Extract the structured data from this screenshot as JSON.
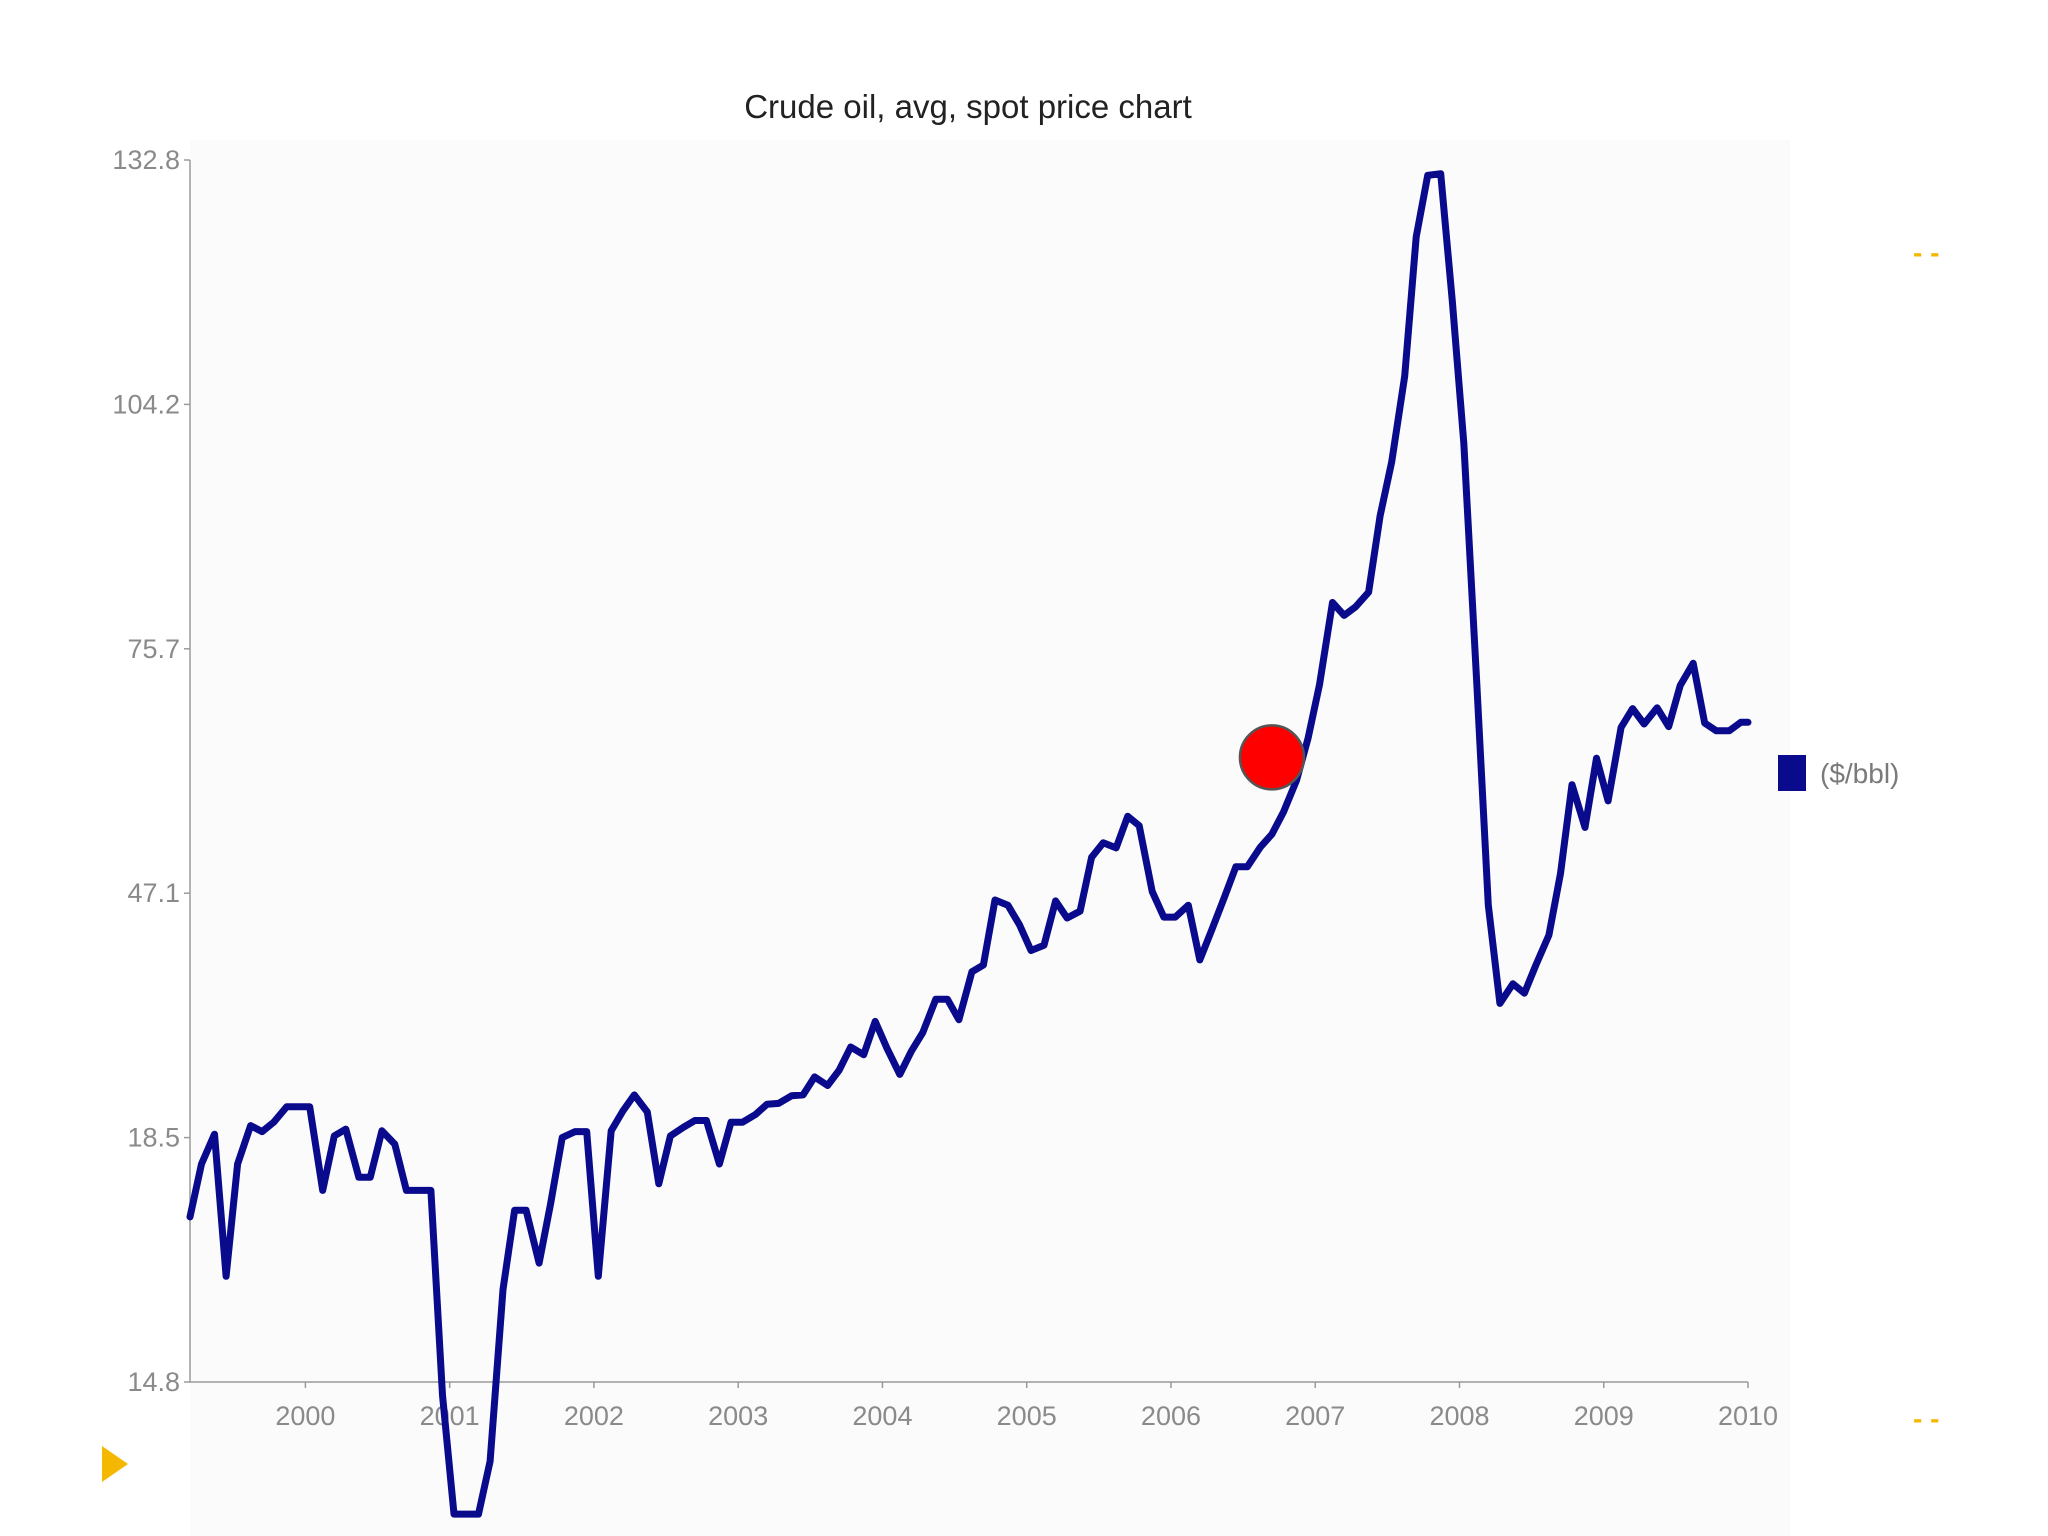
{
  "chart_data": {
    "type": "line",
    "title": "Crude oil, avg, spot  price chart",
    "xlabel": "",
    "ylabel": "",
    "x_ticks": [
      "2000",
      "2001",
      "2002",
      "2003",
      "2004",
      "2005",
      "2006",
      "2007",
      "2008",
      "2009",
      "2010"
    ],
    "y_ticks": [
      "14.8",
      "18.5",
      "47.1",
      "75.7",
      "104.2",
      "132.8"
    ],
    "xlim": [
      1999.2,
      2010.0
    ],
    "ylim": [
      14.8,
      132.8
    ],
    "grid": false,
    "legend_position": "right",
    "series": [
      {
        "name": "($/bbl)",
        "color": "#0a0a8c",
        "x": [
          1999.2,
          1999.28,
          1999.37,
          1999.45,
          1999.53,
          1999.62,
          1999.7,
          1999.78,
          1999.87,
          1999.95,
          2000.03,
          2000.12,
          2000.2,
          2000.28,
          2000.37,
          2000.45,
          2000.53,
          2000.62,
          2000.7,
          2000.78,
          2000.87,
          2000.95,
          2001.03,
          2001.12,
          2001.2,
          2001.28,
          2001.37,
          2001.45,
          2001.53,
          2001.62,
          2001.7,
          2001.78,
          2001.87,
          2001.95,
          2002.03,
          2002.12,
          2002.2,
          2002.28,
          2002.37,
          2002.45,
          2002.53,
          2002.62,
          2002.7,
          2002.78,
          2002.87,
          2002.95,
          2003.03,
          2003.12,
          2003.2,
          2003.28,
          2003.37,
          2003.45,
          2003.53,
          2003.62,
          2003.7,
          2003.78,
          2003.87,
          2003.95,
          2004.03,
          2004.12,
          2004.2,
          2004.28,
          2004.37,
          2004.45,
          2004.53,
          2004.62,
          2004.7,
          2004.78,
          2004.87,
          2004.95,
          2005.03,
          2005.12,
          2005.2,
          2005.28,
          2005.37,
          2005.45,
          2005.53,
          2005.62,
          2005.7,
          2005.78,
          2005.87,
          2005.95,
          2006.03,
          2006.12,
          2006.2,
          2006.28,
          2006.37,
          2006.45,
          2006.53,
          2006.62,
          2006.7,
          2006.78,
          2006.87,
          2006.95,
          2007.03,
          2007.12,
          2007.2,
          2007.28,
          2007.37,
          2007.45,
          2007.53,
          2007.62,
          2007.7,
          2007.78,
          2007.87,
          2007.95,
          2008.03,
          2008.12,
          2008.2,
          2008.28,
          2008.37,
          2008.45,
          2008.53,
          2008.62,
          2008.7,
          2008.78,
          2008.87,
          2008.95,
          2009.03,
          2009.12,
          2009.2,
          2009.28,
          2009.37,
          2009.45,
          2009.53,
          2009.62,
          2009.7,
          2009.78,
          2009.87,
          2009.95,
          2010.0
        ],
        "y": [
          17.3,
          18.1,
          18.9,
          16.4,
          18.1,
          19.9,
          19.2,
          20.3,
          22.1,
          22.1,
          22.1,
          17.7,
          18.7,
          19.5,
          17.9,
          17.9,
          19.3,
          18.4,
          17.7,
          17.7,
          17.7,
          14.6,
          12.8,
          12.8,
          12.8,
          13.6,
          16.2,
          17.4,
          17.4,
          16.6,
          17.5,
          18.5,
          19.2,
          19.2,
          16.4,
          19.3,
          21.6,
          23.5,
          21.5,
          17.8,
          18.7,
          19.7,
          20.5,
          20.5,
          18.1,
          20.3,
          20.3,
          21.2,
          22.4,
          22.5,
          23.4,
          23.5,
          25.6,
          24.6,
          26.4,
          29.1,
          28.2,
          32.1,
          29.0,
          25.9,
          28.6,
          30.8,
          34.7,
          34.7,
          32.3,
          37.9,
          38.7,
          46.3,
          45.7,
          43.4,
          40.4,
          41.0,
          46.2,
          44.2,
          45.0,
          51.3,
          53.0,
          52.4,
          56.1,
          55.0,
          47.3,
          44.3,
          44.3,
          45.7,
          39.3,
          42.7,
          46.6,
          50.2,
          50.2,
          52.5,
          54.0,
          56.6,
          60.3,
          65.2,
          71.5,
          81.1,
          79.6,
          80.6,
          82.3,
          91.2,
          97.5,
          107.5,
          123.8,
          131.0,
          131.2,
          116.3,
          99.7,
          71.6,
          45.7,
          34.2,
          36.5,
          35.4,
          38.7,
          42.2,
          49.4,
          59.8,
          54.8,
          62.9,
          57.9,
          66.5,
          68.7,
          66.9,
          68.8,
          66.6,
          71.4,
          74.0,
          67.0,
          66.1,
          66.1,
          67.1,
          67.1
        ]
      }
    ],
    "annotations": [
      {
        "type": "marker",
        "color": "#ff0000",
        "x": 2006.7,
        "y": 63.0
      }
    ]
  },
  "decor": {
    "accent_color": "#f5b800",
    "accent_marks": [
      "- -",
      "- -"
    ],
    "corner_triangle_color": "#f5b800"
  }
}
